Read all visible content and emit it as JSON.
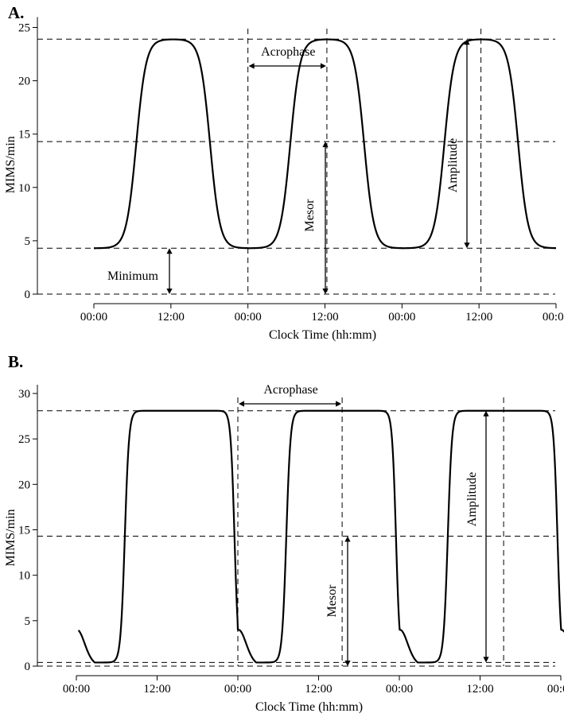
{
  "chart_data": [
    {
      "type": "line",
      "panel_label": "A.",
      "xlabel": "Clock Time (hh:mm)",
      "ylabel": "MIMS/min",
      "ylim": [
        0,
        25
      ],
      "xlim": [
        0,
        72
      ],
      "yticks": [
        0,
        5,
        10,
        15,
        20,
        25
      ],
      "x_tick_positions": [
        0,
        12,
        24,
        36,
        48,
        60,
        72
      ],
      "x_tick_labels": [
        "00:00",
        "12:00",
        "00:00",
        "12:00",
        "00:00",
        "12:00",
        "00:00"
      ],
      "model": {
        "minimum": 4.3,
        "maximum": 23.9,
        "mesor": 14.3,
        "amplitude": 9.8,
        "rise_hour": 6.6,
        "fall_hour": 18.1,
        "steepness": 1.3
      },
      "reference_lines": {
        "minimum": 4.3,
        "mesor": 14.3,
        "maximum": 23.9,
        "vertical_x": [
          24,
          36.3,
          60.3
        ]
      },
      "annotations": {
        "acrophase": "Acrophase",
        "mesor": "Mesor",
        "amplitude": "Amplitude",
        "minimum": "Minimum"
      },
      "series": [
        {
          "x_start": 0,
          "x_end": 72
        }
      ]
    },
    {
      "type": "line",
      "panel_label": "B.",
      "xlabel": "Clock Time (hh:mm)",
      "ylabel": "MIMS/min",
      "ylim": [
        0,
        30
      ],
      "xlim": [
        0,
        72
      ],
      "yticks": [
        0,
        5,
        10,
        15,
        20,
        25,
        30
      ],
      "x_tick_positions": [
        0,
        12,
        24,
        36,
        48,
        60,
        72
      ],
      "x_tick_labels": [
        "00:00",
        "12:00",
        "00:00",
        "12:00",
        "00:00",
        "12:00",
        "00:00"
      ],
      "model": {
        "minimum": 0.4,
        "maximum": 28.1,
        "mesor": 14.3,
        "amplitude": 13.8,
        "rise_hour": 7.2,
        "fall_hour": 23.5,
        "steepness": 0.8
      },
      "reference_lines": {
        "minimum": 0.4,
        "floor": 0.0,
        "mesor": 14.3,
        "maximum": 28.1,
        "vertical_x": [
          24,
          39.5,
          63.5
        ]
      },
      "annotations": {
        "acrophase": "Acrophase",
        "mesor": "Mesor",
        "amplitude": "Amplitude"
      },
      "series": [
        {
          "x_start": 0.3,
          "x_end": 72.5
        }
      ]
    }
  ]
}
